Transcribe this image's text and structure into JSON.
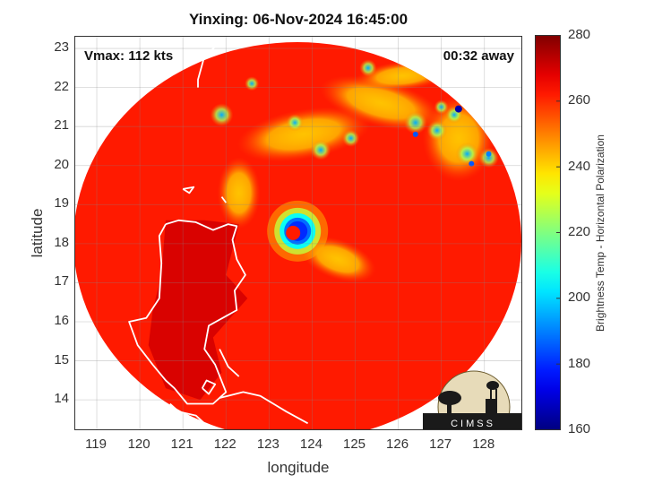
{
  "chart_data": {
    "type": "heatmap",
    "title": "Yinxing: 06-Nov-2024 16:45:00",
    "xlabel": "longitude",
    "ylabel": "latitude",
    "xlim": [
      118.5,
      128.9
    ],
    "ylim": [
      13.2,
      23.3
    ],
    "x_ticks": [
      119,
      120,
      121,
      122,
      123,
      124,
      125,
      126,
      127,
      128
    ],
    "y_ticks": [
      14,
      15,
      16,
      17,
      18,
      19,
      20,
      21,
      22,
      23
    ],
    "grid": true,
    "annotations": {
      "vmax": "Vmax: 112 kts",
      "time_away": "00:32 away"
    },
    "colorbar": {
      "label": "Brightness Temp - Horizontal Polarization",
      "range": [
        160,
        280
      ],
      "ticks": [
        160,
        180,
        200,
        220,
        240,
        260,
        280
      ],
      "colormap": "jet"
    },
    "storm_center": {
      "lon": 123.6,
      "lat": 18.3
    },
    "eye_temp": 262,
    "eyewall_temp": 180,
    "background_temp": 262,
    "land_temp": 270,
    "logo_text": "CIMSS"
  }
}
